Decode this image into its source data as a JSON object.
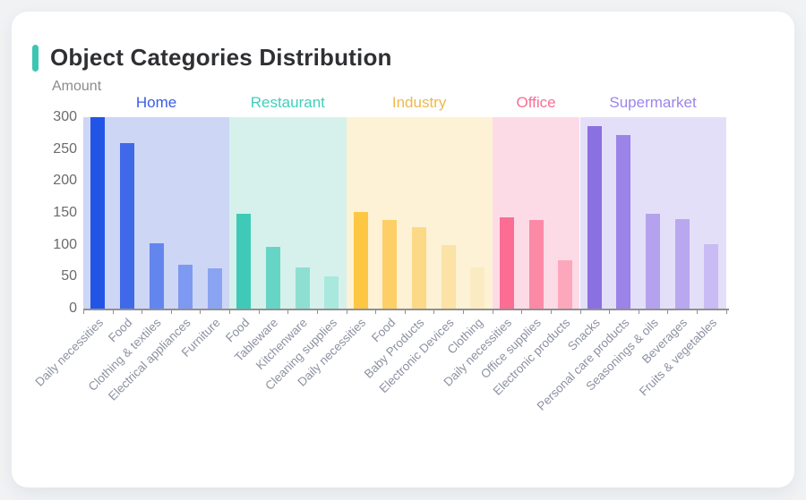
{
  "page": {
    "background": "#f0f2f4",
    "card_background": "#ffffff"
  },
  "header": {
    "title": "Object Categories Distribution",
    "accent_color": "#3ec6b4"
  },
  "chart_data": {
    "type": "bar",
    "title": "Object Categories Distribution",
    "xlabel": "",
    "ylabel": "Amount",
    "ylim": [
      0,
      300
    ],
    "y_ticks": [
      300,
      250,
      200,
      150,
      100,
      50,
      0
    ],
    "grid": false,
    "legend_position": "group headers above plot",
    "axis_color": "#909090",
    "y_tick_label_color": "#6b6b6b",
    "category_label_color": "#8d92a1",
    "groups": [
      {
        "name": "Home",
        "label_color": "#3a5be8",
        "background_color": "#cdd6f5",
        "bars": [
          {
            "category": "Daily necessities",
            "value": 300,
            "color": "#2254e6"
          },
          {
            "category": "Food",
            "value": 260,
            "color": "#4069e9"
          },
          {
            "category": "Clothing & textiles",
            "value": 102,
            "color": "#6386ee"
          },
          {
            "category": "Electrical appliances",
            "value": 68,
            "color": "#7e99f1"
          },
          {
            "category": "Furniture",
            "value": 63,
            "color": "#8ba4f2"
          }
        ]
      },
      {
        "name": "Restaurant",
        "label_color": "#3fd0bb",
        "background_color": "#d6f1ec",
        "bars": [
          {
            "category": "Food",
            "value": 149,
            "color": "#3fcab7"
          },
          {
            "category": "Tableware",
            "value": 97,
            "color": "#66d5c6"
          },
          {
            "category": "Kitchenware",
            "value": 65,
            "color": "#8edfd2"
          },
          {
            "category": "Cleaning supplies",
            "value": 51,
            "color": "#a9e8dd"
          }
        ]
      },
      {
        "name": "Industry",
        "label_color": "#f0b84a",
        "background_color": "#fdf2d5",
        "bars": [
          {
            "category": "Daily necessities",
            "value": 151,
            "color": "#fec743"
          },
          {
            "category": "Food",
            "value": 139,
            "color": "#fdcf66"
          },
          {
            "category": "Baby Products",
            "value": 127,
            "color": "#fcd987"
          },
          {
            "category": "Electronic Devices",
            "value": 100,
            "color": "#fbe2a6"
          },
          {
            "category": "Clothing",
            "value": 64,
            "color": "#fbebc2"
          }
        ]
      },
      {
        "name": "Office",
        "label_color": "#fa6e95",
        "background_color": "#fcdbe6",
        "bars": [
          {
            "category": "Daily necessities",
            "value": 143,
            "color": "#fb6d92"
          },
          {
            "category": "Office supplies",
            "value": 139,
            "color": "#fc89a6"
          },
          {
            "category": "Electronic products",
            "value": 76,
            "color": "#fda7bc"
          }
        ]
      },
      {
        "name": "Supermarket",
        "label_color": "#9d85ec",
        "background_color": "#e4dff8",
        "bars": [
          {
            "category": "Snacks",
            "value": 286,
            "color": "#8b70e1"
          },
          {
            "category": "Personal care products",
            "value": 272,
            "color": "#9b83e7"
          },
          {
            "category": "Seasonings & oils",
            "value": 149,
            "color": "#b4a2ee"
          },
          {
            "category": "Beverages",
            "value": 140,
            "color": "#b9a8ef"
          },
          {
            "category": "Fruits & vegetables",
            "value": 101,
            "color": "#c9bbf3"
          }
        ]
      }
    ]
  }
}
